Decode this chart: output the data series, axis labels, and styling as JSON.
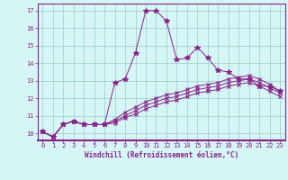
{
  "xlabel": "Windchill (Refroidissement éolien,°C)",
  "background_color": "#d6f5f5",
  "line_color": "#882288",
  "xlim": [
    -0.5,
    23.5
  ],
  "ylim": [
    9.6,
    17.4
  ],
  "xticks": [
    0,
    1,
    2,
    3,
    4,
    5,
    6,
    7,
    8,
    9,
    10,
    11,
    12,
    13,
    14,
    15,
    16,
    17,
    18,
    19,
    20,
    21,
    22,
    23
  ],
  "yticks": [
    10,
    11,
    12,
    13,
    14,
    15,
    16,
    17
  ],
  "grid_color": "#99cccc",
  "series": [
    [
      10.1,
      9.8,
      10.5,
      10.7,
      10.5,
      10.5,
      10.5,
      12.9,
      13.1,
      14.6,
      17.0,
      17.0,
      16.4,
      14.2,
      14.3,
      14.9,
      14.3,
      13.6,
      13.5,
      13.1,
      13.1,
      12.7,
      12.7,
      12.4
    ],
    [
      10.1,
      9.8,
      10.5,
      10.7,
      10.5,
      10.5,
      10.5,
      10.8,
      11.2,
      11.5,
      11.8,
      12.0,
      12.2,
      12.3,
      12.5,
      12.7,
      12.8,
      12.9,
      13.1,
      13.2,
      13.3,
      13.1,
      12.8,
      12.4
    ],
    [
      10.1,
      9.8,
      10.5,
      10.7,
      10.5,
      10.5,
      10.5,
      10.7,
      11.0,
      11.3,
      11.6,
      11.8,
      12.0,
      12.1,
      12.3,
      12.5,
      12.6,
      12.7,
      12.9,
      13.0,
      13.1,
      12.9,
      12.6,
      12.3
    ],
    [
      10.1,
      9.8,
      10.5,
      10.7,
      10.5,
      10.5,
      10.5,
      10.6,
      10.9,
      11.1,
      11.4,
      11.6,
      11.8,
      11.9,
      12.1,
      12.3,
      12.4,
      12.5,
      12.7,
      12.8,
      12.9,
      12.7,
      12.4,
      12.1
    ]
  ],
  "markers": [
    "*",
    "x",
    "x",
    "x"
  ],
  "markersizes": [
    4,
    3,
    3,
    3
  ]
}
